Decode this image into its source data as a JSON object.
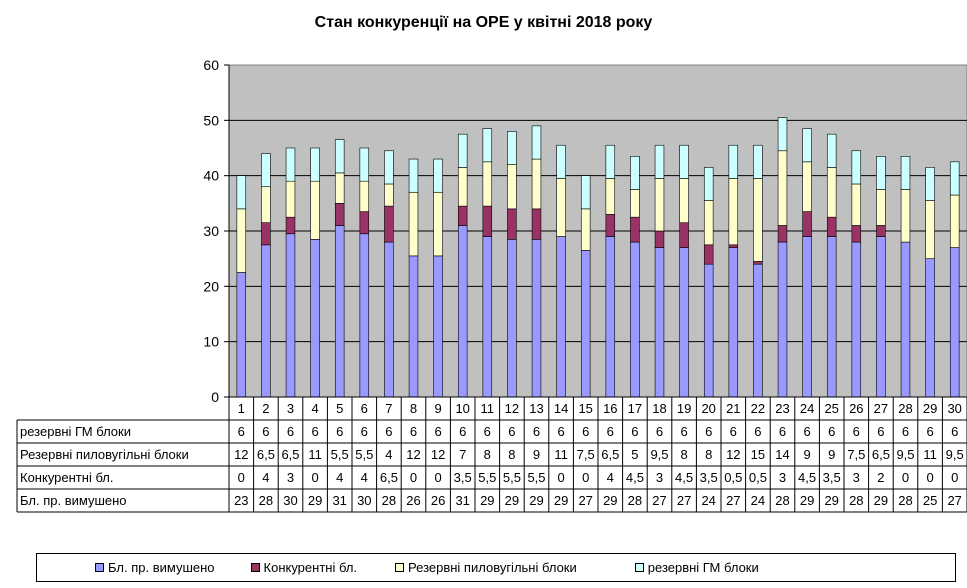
{
  "chart_data": {
    "type": "bar",
    "stacked": true,
    "title": "Стан конкуренції на ОРЕ  у квітні 2018 року",
    "ylim": [
      0,
      60
    ],
    "yticks": [
      "0",
      "10",
      "20",
      "30",
      "40",
      "50",
      "60"
    ],
    "categories": [
      "1",
      "2",
      "3",
      "4",
      "5",
      "6",
      "7",
      "8",
      "9",
      "10",
      "11",
      "12",
      "13",
      "14",
      "15",
      "16",
      "17",
      "18",
      "19",
      "20",
      "21",
      "22",
      "23",
      "24",
      "25",
      "26",
      "27",
      "28",
      "29",
      "30"
    ],
    "grid": true,
    "legend_position": "bottom",
    "series": [
      {
        "name": "Бл. пр. вимушено",
        "color": "#9999FF",
        "values": [
          22.5,
          27.5,
          29.5,
          28.5,
          31,
          29.5,
          28,
          25.5,
          25.5,
          31,
          29,
          28.5,
          28.5,
          29,
          26.5,
          29,
          28,
          27,
          27,
          24,
          27,
          24,
          28,
          29,
          29,
          28,
          29,
          28,
          25,
          27
        ],
        "labels": [
          "23",
          "28",
          "30",
          "29",
          "31",
          "30",
          "28",
          "26",
          "26",
          "31",
          "29",
          "29",
          "29",
          "29",
          "27",
          "29",
          "28",
          "27",
          "27",
          "24",
          "27",
          "24",
          "28",
          "29",
          "29",
          "28",
          "29",
          "28",
          "25",
          "27"
        ]
      },
      {
        "name": "Конкурентні бл.",
        "color": "#993366",
        "values": [
          0,
          4,
          3,
          0,
          4,
          4,
          6.5,
          0,
          0,
          3.5,
          5.5,
          5.5,
          5.5,
          0,
          0,
          4,
          4.5,
          3,
          4.5,
          3.5,
          0.5,
          0.5,
          3,
          4.5,
          3.5,
          3,
          2,
          0,
          0,
          0
        ],
        "labels": [
          "0",
          "4",
          "3",
          "0",
          "4",
          "4",
          "6,5",
          "0",
          "0",
          "3,5",
          "5,5",
          "5,5",
          "5,5",
          "0",
          "0",
          "4",
          "4,5",
          "3",
          "4,5",
          "3,5",
          "0,5",
          "0,5",
          "3",
          "4,5",
          "3,5",
          "3",
          "2",
          "0",
          "0",
          "0"
        ]
      },
      {
        "name": "Резервні пиловугільні  блоки",
        "color": "#FFFFCC",
        "values": [
          11.5,
          6.5,
          6.5,
          10.5,
          5.5,
          5.5,
          4,
          11.5,
          11.5,
          7,
          8,
          8,
          9,
          10.5,
          7.5,
          6.5,
          5,
          9.5,
          8,
          8,
          12,
          15,
          13.5,
          9,
          9,
          7.5,
          6.5,
          9.5,
          10.5,
          9.5
        ],
        "labels": [
          "12",
          "6,5",
          "6,5",
          "11",
          "5,5",
          "5,5",
          "4",
          "12",
          "12",
          "7",
          "8",
          "8",
          "9",
          "11",
          "7,5",
          "6,5",
          "5",
          "9,5",
          "8",
          "8",
          "12",
          "15",
          "14",
          "9",
          "9",
          "7,5",
          "6,5",
          "9,5",
          "11",
          "9,5"
        ]
      },
      {
        "name": "резервні ГМ блоки",
        "color": "#CCFFFF",
        "values": [
          6,
          6,
          6,
          6,
          6,
          6,
          6,
          6,
          6,
          6,
          6,
          6,
          6,
          6,
          6,
          6,
          6,
          6,
          6,
          6,
          6,
          6,
          6,
          6,
          6,
          6,
          6,
          6,
          6,
          6
        ],
        "labels": [
          "6",
          "6",
          "6",
          "6",
          "6",
          "6",
          "6",
          "6",
          "6",
          "6",
          "6",
          "6",
          "6",
          "6",
          "6",
          "6",
          "6",
          "6",
          "6",
          "6",
          "6",
          "6",
          "6",
          "6",
          "6",
          "6",
          "6",
          "6",
          "6",
          "6"
        ]
      }
    ],
    "table_row_headers": [
      "резервні ГМ блоки",
      "Резервні пиловугільні  блоки",
      "Конкурентні  бл.",
      "Бл. пр. вимушено"
    ]
  }
}
